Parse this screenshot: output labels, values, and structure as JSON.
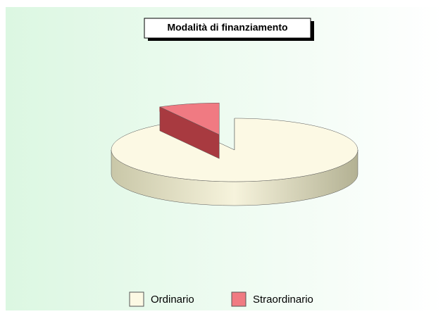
{
  "chart_data": {
    "type": "pie",
    "title": "Modalità di finanziamento",
    "categories": [
      "Ordinario",
      "Straordinario"
    ],
    "values": [
      92,
      8
    ],
    "colors": [
      "#fcf9e4",
      "#f07a82"
    ],
    "exploded": [
      false,
      true
    ],
    "legend": "bottom"
  }
}
